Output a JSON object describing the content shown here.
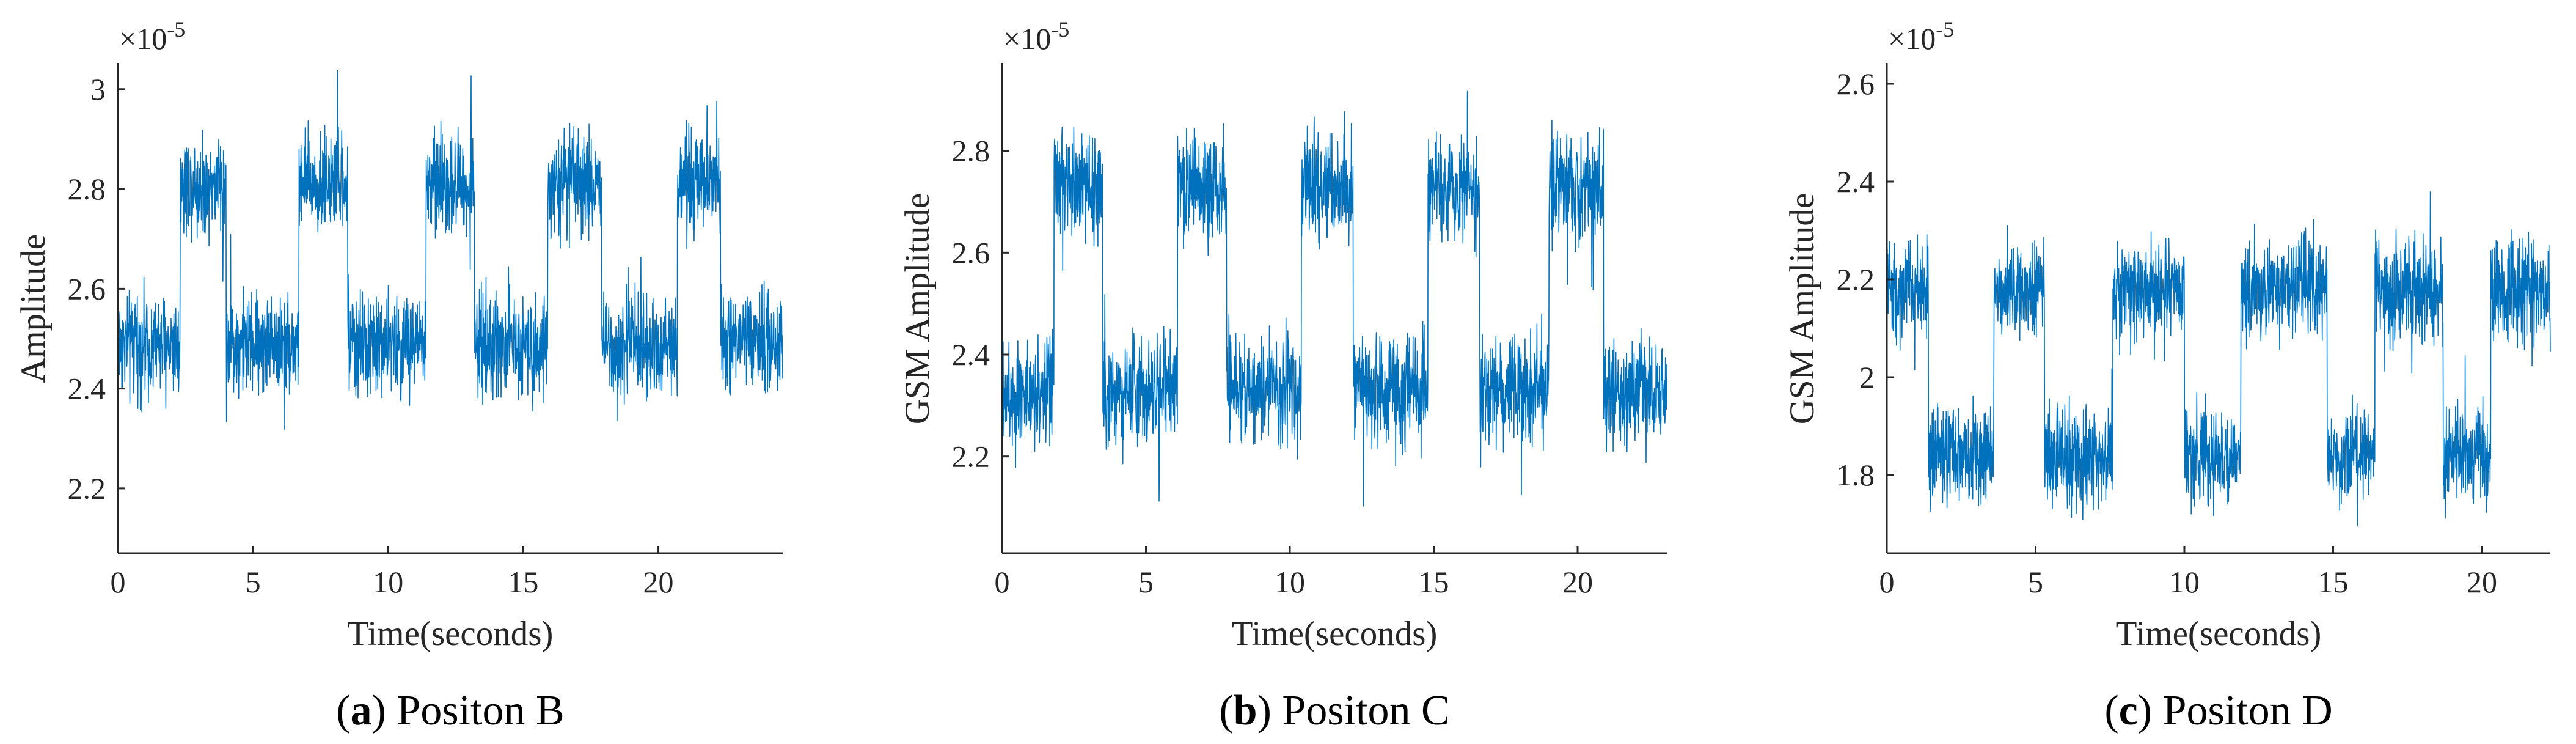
{
  "colors": {
    "line": "#0072BD",
    "axis": "#262626"
  },
  "chart_data": [
    {
      "type": "line",
      "title": "",
      "caption_letter": "a",
      "caption_text": "Positon B",
      "xlabel": "Time(seconds)",
      "ylabel": "Amplitude",
      "exponent_base": "×10",
      "exponent_power": "-5",
      "xlim": [
        0,
        24.6
      ],
      "ylim": [
        2.07,
        3.05
      ],
      "xticks": [
        0,
        5,
        10,
        15,
        20
      ],
      "xtick_labels": [
        "0",
        "5",
        "10",
        "15",
        "20"
      ],
      "yticks": [
        2.2,
        2.4,
        2.6,
        2.8,
        3.0
      ],
      "ytick_labels": [
        "2.2",
        "2.4",
        "2.6",
        "2.8",
        "3"
      ],
      "series": [
        {
          "name": "signal",
          "low_level": 2.49,
          "high_level": 2.81,
          "noise": 0.085,
          "segments": [
            [
              0,
              2.3,
              "low"
            ],
            [
              2.3,
              4.0,
              "high"
            ],
            [
              4.0,
              6.7,
              "low"
            ],
            [
              6.7,
              8.5,
              "high"
            ],
            [
              8.5,
              11.4,
              "low"
            ],
            [
              11.4,
              13.2,
              "high"
            ],
            [
              13.2,
              15.9,
              "low"
            ],
            [
              15.9,
              17.9,
              "high"
            ],
            [
              17.9,
              20.7,
              "low"
            ],
            [
              20.7,
              22.3,
              "high"
            ],
            [
              22.3,
              24.6,
              "low"
            ]
          ]
        }
      ]
    },
    {
      "type": "line",
      "title": "",
      "caption_letter": "b",
      "caption_text": "Positon C",
      "xlabel": "Time(seconds)",
      "ylabel": "GSM Amplitude",
      "exponent_base": "×10",
      "exponent_power": "-5",
      "xlim": [
        0,
        23.1
      ],
      "ylim": [
        2.01,
        2.97
      ],
      "xticks": [
        0,
        5,
        10,
        15,
        20
      ],
      "xtick_labels": [
        "0",
        "5",
        "10",
        "15",
        "20"
      ],
      "yticks": [
        2.2,
        2.4,
        2.6,
        2.8
      ],
      "ytick_labels": [
        "2.2",
        "2.4",
        "2.6",
        "2.8"
      ],
      "series": [
        {
          "name": "signal",
          "low_level": 2.33,
          "high_level": 2.73,
          "noise": 0.09,
          "segments": [
            [
              0,
              1.8,
              "low"
            ],
            [
              1.8,
              3.5,
              "high"
            ],
            [
              3.5,
              6.1,
              "low"
            ],
            [
              6.1,
              7.8,
              "high"
            ],
            [
              7.8,
              10.4,
              "low"
            ],
            [
              10.4,
              12.2,
              "high"
            ],
            [
              12.2,
              14.8,
              "low"
            ],
            [
              14.8,
              16.6,
              "high"
            ],
            [
              16.6,
              19.0,
              "low"
            ],
            [
              19.0,
              20.9,
              "high"
            ],
            [
              20.9,
              23.1,
              "low"
            ]
          ]
        }
      ]
    },
    {
      "type": "line",
      "title": "",
      "caption_letter": "c",
      "caption_text": "Positon D",
      "xlabel": "Time(seconds)",
      "ylabel": "GSM Amplitude",
      "exponent_base": "×10",
      "exponent_power": "-5",
      "xlim": [
        0,
        22.3
      ],
      "ylim": [
        1.64,
        2.64
      ],
      "xticks": [
        0,
        5,
        10,
        15,
        20
      ],
      "xtick_labels": [
        "0",
        "5",
        "10",
        "15",
        "20"
      ],
      "yticks": [
        1.8,
        2.0,
        2.2,
        2.4,
        2.6
      ],
      "ytick_labels": [
        "1.8",
        "2",
        "2.2",
        "2.4",
        "2.6"
      ],
      "series": [
        {
          "name": "signal",
          "low_level": 1.84,
          "high_level": 2.18,
          "noise": 0.085,
          "segments": [
            [
              0,
              1.4,
              "high"
            ],
            [
              1.4,
              3.6,
              "low"
            ],
            [
              3.6,
              5.3,
              "high"
            ],
            [
              5.3,
              7.6,
              "low"
            ],
            [
              7.6,
              10.0,
              "high"
            ],
            [
              10.0,
              11.9,
              "low"
            ],
            [
              11.9,
              14.8,
              "high"
            ],
            [
              14.8,
              16.4,
              "low"
            ],
            [
              16.4,
              18.7,
              "high"
            ],
            [
              18.7,
              20.3,
              "low"
            ],
            [
              20.3,
              22.3,
              "high"
            ]
          ]
        }
      ]
    }
  ]
}
